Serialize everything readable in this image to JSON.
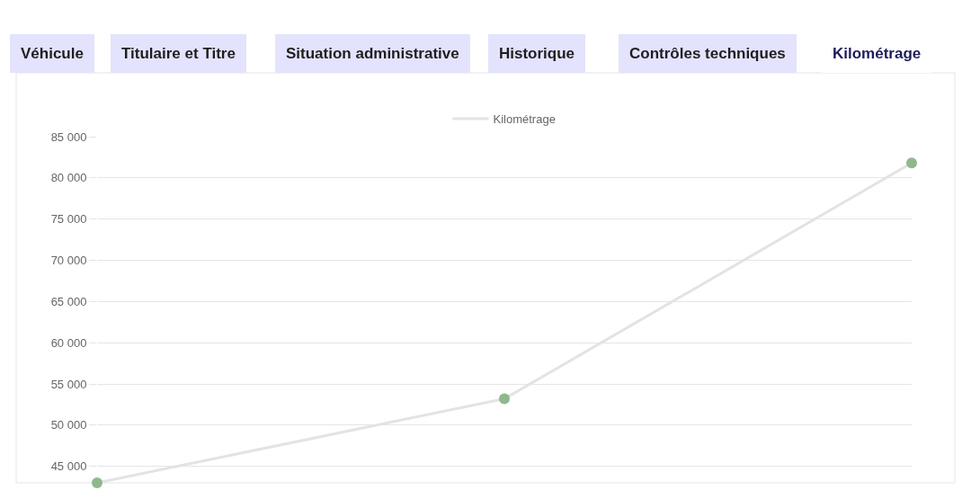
{
  "chart_data": {
    "type": "line",
    "categories": [
      null,
      null,
      null
    ],
    "series": [
      {
        "name": "Kilométrage",
        "color": "#e3e3e3",
        "marker": "none",
        "values": [
          43000,
          53200,
          81800
        ]
      },
      {
        "type": "scatter",
        "color": "#8fb88c",
        "marker": "circle",
        "values": [
          43000,
          53200,
          81800
        ]
      }
    ],
    "ylim": [
      43000,
      85000
    ],
    "yticks": [
      {
        "value": 45000,
        "label": "45 000"
      },
      {
        "value": 50000,
        "label": "50 000"
      },
      {
        "value": 55000,
        "label": "55 000"
      },
      {
        "value": 60000,
        "label": "60 000"
      },
      {
        "value": 65000,
        "label": "65 000"
      },
      {
        "value": 70000,
        "label": "70 000"
      },
      {
        "value": 75000,
        "label": "75 000"
      },
      {
        "value": 80000,
        "label": "80 000"
      },
      {
        "value": 85000,
        "label": "85 000"
      }
    ],
    "grid": "y",
    "legend": "top",
    "line_style": "solid",
    "tick_labels": "y",
    "annotations": [
      "Véhicule",
      "Titulaire et Titre",
      "Situation administrative",
      "Historique",
      "Contrôles techniques",
      "Kilométrage"
    ]
  }
}
